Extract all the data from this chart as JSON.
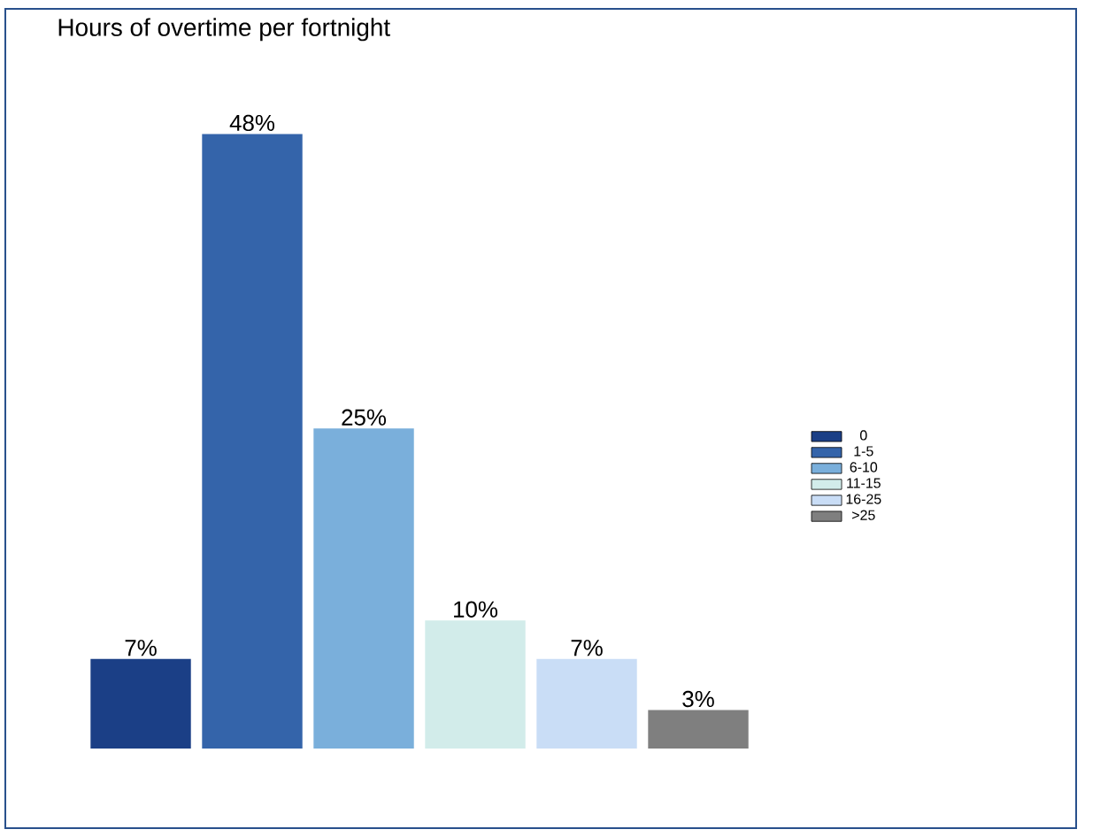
{
  "chart_data": {
    "type": "bar",
    "title": "Hours of overtime per fortnight",
    "categories": [
      null,
      null,
      null,
      null,
      null,
      null
    ],
    "series": [
      {
        "name": "0",
        "color": "#1b3f86",
        "values": [
          7,
          null,
          null,
          null,
          null,
          null
        ],
        "value_labels": [
          "7%",
          null,
          null,
          null,
          null,
          null
        ]
      },
      {
        "name": "1-5",
        "color": "#3464aa",
        "values": [
          null,
          48,
          null,
          null,
          null,
          null
        ],
        "value_labels": [
          null,
          "48%",
          null,
          null,
          null,
          null
        ]
      },
      {
        "name": "6-10",
        "color": "#7aafdb",
        "values": [
          null,
          null,
          25,
          null,
          null,
          null
        ],
        "value_labels": [
          null,
          null,
          "25%",
          null,
          null,
          null
        ]
      },
      {
        "name": "11-15",
        "color": "#d2ecea",
        "values": [
          null,
          null,
          null,
          10,
          null,
          null
        ],
        "value_labels": [
          null,
          null,
          null,
          "10%",
          null,
          null
        ]
      },
      {
        "name": "16-25",
        "color": "#c9ddf6",
        "values": [
          null,
          null,
          null,
          null,
          7,
          null
        ],
        "value_labels": [
          null,
          null,
          null,
          null,
          "7%",
          null
        ]
      },
      {
        "name": ">25",
        "color": "#7f7f7f",
        "values": [
          null,
          null,
          null,
          null,
          null,
          3
        ],
        "value_labels": [
          null,
          null,
          null,
          null,
          null,
          "3%"
        ]
      }
    ],
    "stacked": true,
    "legend": "right"
  }
}
